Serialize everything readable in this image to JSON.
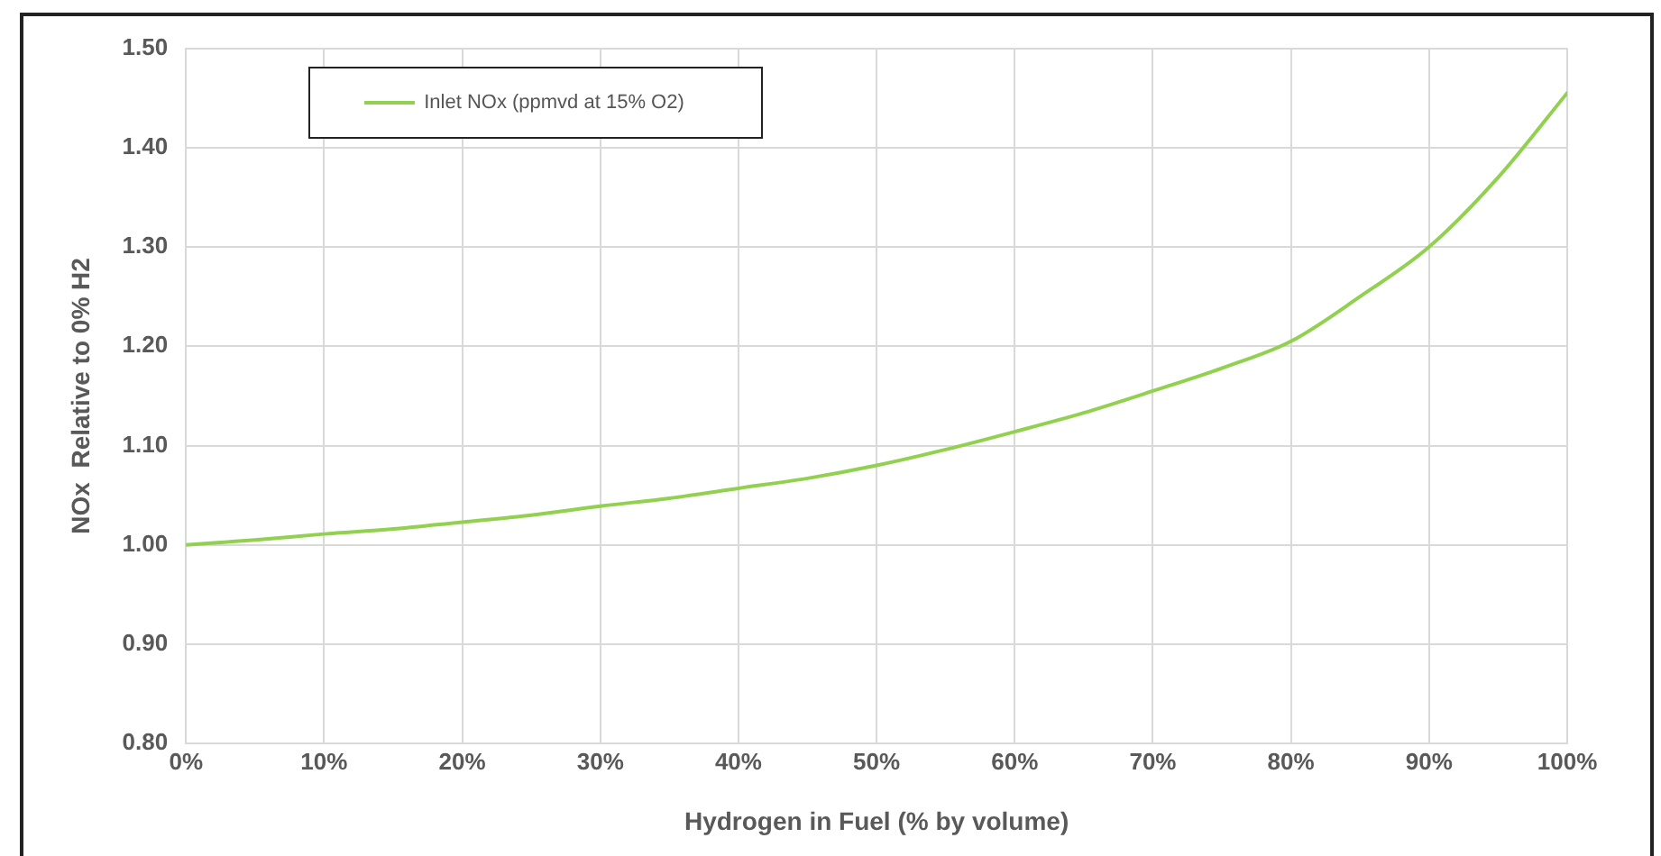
{
  "chart_data": {
    "type": "line",
    "xlabel": "Hydrogen in Fuel (% by volume)",
    "ylabel": "NOx  Relative to 0% H2",
    "x": [
      0,
      5,
      10,
      15,
      20,
      25,
      30,
      35,
      40,
      45,
      50,
      55,
      60,
      65,
      70,
      75,
      80,
      85,
      90,
      95,
      100
    ],
    "series": [
      {
        "name": "Inlet NOx (ppmvd at 15% O2)",
        "color": "#92d050",
        "values": [
          1.0,
          1.005,
          1.011,
          1.016,
          1.023,
          1.03,
          1.039,
          1.047,
          1.057,
          1.067,
          1.08,
          1.096,
          1.114,
          1.133,
          1.155,
          1.178,
          1.205,
          1.25,
          1.3,
          1.37,
          1.455
        ]
      }
    ],
    "xlim": [
      0,
      100
    ],
    "xticks": [
      {
        "value": 0,
        "label": "0%"
      },
      {
        "value": 10,
        "label": "10%"
      },
      {
        "value": 20,
        "label": "20%"
      },
      {
        "value": 30,
        "label": "30%"
      },
      {
        "value": 40,
        "label": "40%"
      },
      {
        "value": 50,
        "label": "50%"
      },
      {
        "value": 60,
        "label": "60%"
      },
      {
        "value": 70,
        "label": "70%"
      },
      {
        "value": 80,
        "label": "80%"
      },
      {
        "value": 90,
        "label": "90%"
      },
      {
        "value": 100,
        "label": "100%"
      }
    ],
    "ylim": [
      0.8,
      1.5
    ],
    "yticks": [
      {
        "value": 0.8,
        "label": "0.80"
      },
      {
        "value": 0.9,
        "label": "0.90"
      },
      {
        "value": 1.0,
        "label": "1.00"
      },
      {
        "value": 1.1,
        "label": "1.10"
      },
      {
        "value": 1.2,
        "label": "1.20"
      },
      {
        "value": 1.3,
        "label": "1.30"
      },
      {
        "value": 1.4,
        "label": "1.40"
      },
      {
        "value": 1.5,
        "label": "1.50"
      }
    ],
    "grid": true,
    "legend": "top left",
    "marker": "none",
    "line_style": "solid"
  }
}
